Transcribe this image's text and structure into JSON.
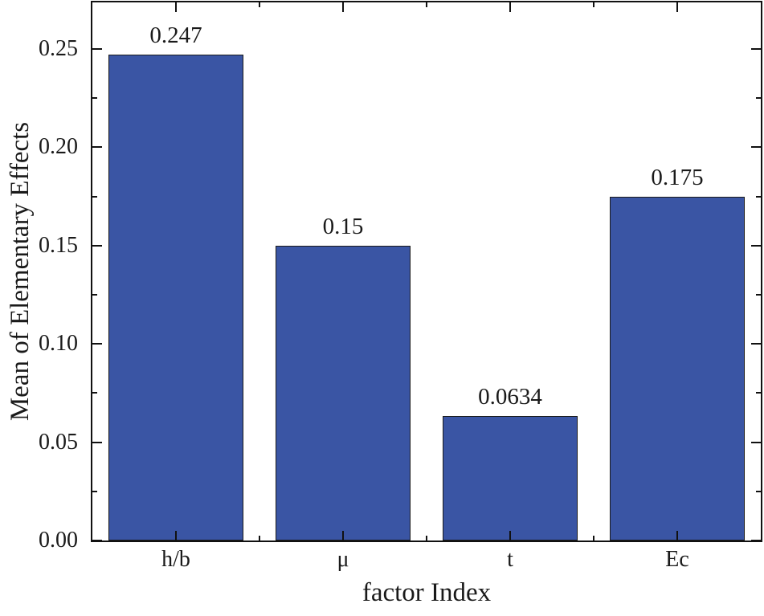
{
  "chart_data": {
    "type": "bar",
    "title": "",
    "xlabel": "factor Index",
    "ylabel": "Mean of Elementary Effects",
    "categories": [
      "h/b",
      "μ",
      "t",
      "Ec"
    ],
    "values": [
      0.247,
      0.15,
      0.0634,
      0.175
    ],
    "value_labels": [
      "0.247",
      "0.15",
      "0.0634",
      "0.175"
    ],
    "ylim": [
      0,
      0.2737
    ],
    "yticks_major": [
      0.0,
      0.05,
      0.1,
      0.15,
      0.2,
      0.25
    ],
    "ytick_labels": [
      "0.00",
      "0.05",
      "0.10",
      "0.15",
      "0.20",
      "0.25"
    ],
    "ytick_minor_step": 0.025,
    "xtick_minor_at_category_boundaries": true,
    "bar_width_fraction": 0.81,
    "grid": false,
    "legend": null,
    "colors": {
      "bar_fill": "#3A55A4",
      "bar_edge": "#1a1a1a",
      "axis": "#111111",
      "text": "#1a1a1a",
      "background": "#ffffff"
    }
  }
}
